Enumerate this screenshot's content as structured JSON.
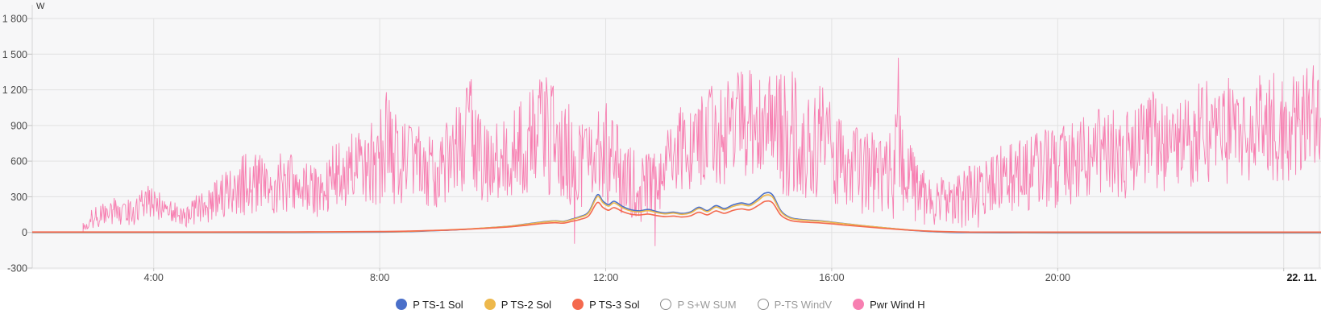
{
  "chart": {
    "unit_label": "W",
    "plot_background": "#f7f7f8",
    "grid_color": "#e2e2e2",
    "axis_color": "#d6d6d6",
    "tick_color": "#c3c3c3",
    "text_color": "#4a4a4a",
    "date_label_color": "#161616",
    "legend": {
      "active_text_color": "#212121",
      "disabled_text_color": "#9b9b9b",
      "disabled_ring_color": "#8d8d8d"
    }
  },
  "chart_data": {
    "type": "line",
    "ylabel": "W",
    "ylim": [
      -300,
      1800
    ],
    "yticks": [
      1800,
      1500,
      1200,
      900,
      600,
      300,
      0,
      -300
    ],
    "ytick_labels": [
      "1 800",
      "1 500",
      "1 200",
      "900",
      "600",
      "300",
      "0",
      "-300"
    ],
    "x_unit": "hours",
    "xlim_hours": [
      1.85,
      24.66
    ],
    "xticks": [
      {
        "h": 4,
        "label": "4:00",
        "bold": false
      },
      {
        "h": 8,
        "label": "8:00",
        "bold": false
      },
      {
        "h": 12,
        "label": "12:00",
        "bold": false
      },
      {
        "h": 16,
        "label": "16:00",
        "bold": false
      },
      {
        "h": 20,
        "label": "20:00",
        "bold": false
      },
      {
        "h": 24,
        "label": "22. 11.",
        "bold": true
      }
    ],
    "grid": true,
    "legend_position": "bottom",
    "series": [
      {
        "name": "P TS-1 Sol",
        "color": "#4a6fc9",
        "enabled": true,
        "style": "smooth",
        "points": [
          [
            1.85,
            2
          ],
          [
            5,
            2
          ],
          [
            6.5,
            3
          ],
          [
            8,
            7
          ],
          [
            8.5,
            11
          ],
          [
            9,
            19
          ],
          [
            9.5,
            30
          ],
          [
            10,
            46
          ],
          [
            10.3,
            57
          ],
          [
            10.6,
            75
          ],
          [
            10.9,
            94
          ],
          [
            11.1,
            102
          ],
          [
            11.25,
            97
          ],
          [
            11.4,
            116
          ],
          [
            11.55,
            138
          ],
          [
            11.7,
            178
          ],
          [
            11.85,
            320
          ],
          [
            11.95,
            268
          ],
          [
            12.05,
            238
          ],
          [
            12.15,
            266
          ],
          [
            12.3,
            222
          ],
          [
            12.45,
            194
          ],
          [
            12.6,
            186
          ],
          [
            12.75,
            197
          ],
          [
            12.9,
            180
          ],
          [
            13.05,
            168
          ],
          [
            13.2,
            175
          ],
          [
            13.35,
            164
          ],
          [
            13.5,
            177
          ],
          [
            13.65,
            216
          ],
          [
            13.8,
            188
          ],
          [
            13.95,
            230
          ],
          [
            14.1,
            205
          ],
          [
            14.25,
            235
          ],
          [
            14.4,
            252
          ],
          [
            14.55,
            242
          ],
          [
            14.7,
            290
          ],
          [
            14.82,
            335
          ],
          [
            14.95,
            322
          ],
          [
            15.1,
            188
          ],
          [
            15.25,
            133
          ],
          [
            15.4,
            116
          ],
          [
            15.6,
            108
          ],
          [
            15.8,
            102
          ],
          [
            16,
            91
          ],
          [
            16.2,
            80
          ],
          [
            16.5,
            64
          ],
          [
            16.8,
            49
          ],
          [
            17.1,
            35
          ],
          [
            17.4,
            22
          ],
          [
            17.7,
            12
          ],
          [
            18,
            6
          ],
          [
            18.4,
            2
          ],
          [
            19,
            1
          ],
          [
            20,
            0
          ],
          [
            24.66,
            0
          ]
        ]
      },
      {
        "name": "P TS-2 Sol",
        "color": "#edb84c",
        "enabled": true,
        "style": "smooth",
        "points": [
          [
            1.85,
            1
          ],
          [
            5,
            1
          ],
          [
            6.5,
            2
          ],
          [
            8,
            6
          ],
          [
            8.5,
            9
          ],
          [
            9,
            17
          ],
          [
            9.5,
            27
          ],
          [
            10,
            42
          ],
          [
            10.3,
            52
          ],
          [
            10.6,
            69
          ],
          [
            10.9,
            87
          ],
          [
            11.1,
            95
          ],
          [
            11.25,
            90
          ],
          [
            11.4,
            108
          ],
          [
            11.55,
            128
          ],
          [
            11.7,
            166
          ],
          [
            11.85,
            300
          ],
          [
            11.95,
            250
          ],
          [
            12.05,
            221
          ],
          [
            12.15,
            248
          ],
          [
            12.3,
            206
          ],
          [
            12.45,
            180
          ],
          [
            12.6,
            173
          ],
          [
            12.75,
            183
          ],
          [
            12.9,
            167
          ],
          [
            13.05,
            156
          ],
          [
            13.2,
            163
          ],
          [
            13.35,
            152
          ],
          [
            13.5,
            164
          ],
          [
            13.65,
            201
          ],
          [
            13.8,
            175
          ],
          [
            13.95,
            214
          ],
          [
            14.1,
            190
          ],
          [
            14.25,
            218
          ],
          [
            14.4,
            234
          ],
          [
            14.55,
            225
          ],
          [
            14.7,
            270
          ],
          [
            14.82,
            312
          ],
          [
            14.95,
            299
          ],
          [
            15.1,
            174
          ],
          [
            15.25,
            123
          ],
          [
            15.4,
            107
          ],
          [
            15.6,
            100
          ],
          [
            15.8,
            94
          ],
          [
            16,
            84
          ],
          [
            16.2,
            74
          ],
          [
            16.5,
            59
          ],
          [
            16.8,
            45
          ],
          [
            17.1,
            32
          ],
          [
            17.4,
            20
          ],
          [
            17.7,
            11
          ],
          [
            18,
            5
          ],
          [
            18.4,
            2
          ],
          [
            19,
            1
          ],
          [
            20,
            0
          ],
          [
            24.66,
            0
          ]
        ]
      },
      {
        "name": "P TS-3 Sol",
        "color": "#f4694e",
        "enabled": true,
        "style": "smooth",
        "points": [
          [
            1.85,
            1
          ],
          [
            5,
            1
          ],
          [
            6.5,
            2
          ],
          [
            8,
            5
          ],
          [
            8.5,
            8
          ],
          [
            9,
            14
          ],
          [
            9.5,
            23
          ],
          [
            10,
            35
          ],
          [
            10.3,
            44
          ],
          [
            10.6,
            58
          ],
          [
            10.9,
            73
          ],
          [
            11.1,
            79
          ],
          [
            11.25,
            75
          ],
          [
            11.4,
            90
          ],
          [
            11.55,
            107
          ],
          [
            11.7,
            138
          ],
          [
            11.85,
            248
          ],
          [
            11.95,
            208
          ],
          [
            12.05,
            184
          ],
          [
            12.15,
            206
          ],
          [
            12.3,
            172
          ],
          [
            12.45,
            150
          ],
          [
            12.6,
            144
          ],
          [
            12.75,
            152
          ],
          [
            12.9,
            139
          ],
          [
            13.05,
            130
          ],
          [
            13.2,
            135
          ],
          [
            13.35,
            127
          ],
          [
            13.5,
            137
          ],
          [
            13.65,
            167
          ],
          [
            13.8,
            145
          ],
          [
            13.95,
            178
          ],
          [
            14.1,
            158
          ],
          [
            14.25,
            182
          ],
          [
            14.4,
            195
          ],
          [
            14.55,
            187
          ],
          [
            14.7,
            224
          ],
          [
            14.82,
            258
          ],
          [
            14.95,
            248
          ],
          [
            15.1,
            143
          ],
          [
            15.25,
            101
          ],
          [
            15.4,
            88
          ],
          [
            15.6,
            82
          ],
          [
            15.8,
            77
          ],
          [
            16,
            69
          ],
          [
            16.2,
            60
          ],
          [
            16.5,
            48
          ],
          [
            16.8,
            36
          ],
          [
            17.1,
            25
          ],
          [
            17.4,
            16
          ],
          [
            17.7,
            8
          ],
          [
            18,
            4
          ],
          [
            18.4,
            1
          ],
          [
            19,
            0
          ],
          [
            24.66,
            0
          ]
        ]
      },
      {
        "name": "P S+W SUM",
        "color": null,
        "enabled": false,
        "style": "hidden",
        "points": []
      },
      {
        "name": "P-TS WindV",
        "color": null,
        "enabled": false,
        "style": "hidden",
        "points": []
      },
      {
        "name": "Pwr Wind H",
        "color": "#f77fb1",
        "enabled": true,
        "style": "noise",
        "t_start": 2.75,
        "t_end": 24.65,
        "envelope": [
          [
            2.75,
            0,
            130
          ],
          [
            3.0,
            30,
            240
          ],
          [
            3.3,
            60,
            300
          ],
          [
            3.6,
            60,
            280
          ],
          [
            3.9,
            80,
            430
          ],
          [
            4.2,
            60,
            300
          ],
          [
            4.5,
            40,
            250
          ],
          [
            4.8,
            60,
            330
          ],
          [
            5.1,
            90,
            430
          ],
          [
            5.4,
            120,
            640
          ],
          [
            5.7,
            140,
            700
          ],
          [
            6.0,
            140,
            620
          ],
          [
            6.3,
            150,
            700
          ],
          [
            6.6,
            120,
            610
          ],
          [
            6.9,
            120,
            570
          ],
          [
            7.2,
            180,
            760
          ],
          [
            7.5,
            220,
            840
          ],
          [
            7.8,
            250,
            900
          ],
          [
            8.1,
            200,
            1180
          ],
          [
            8.4,
            250,
            950
          ],
          [
            8.7,
            220,
            900
          ],
          [
            9.0,
            200,
            830
          ],
          [
            9.3,
            250,
            1000
          ],
          [
            9.6,
            250,
            1290
          ],
          [
            9.9,
            230,
            890
          ],
          [
            10.2,
            280,
            950
          ],
          [
            10.5,
            300,
            1140
          ],
          [
            10.8,
            280,
            1300
          ],
          [
            11.1,
            300,
            1310
          ],
          [
            11.4,
            200,
            1100
          ],
          [
            11.7,
            200,
            950
          ],
          [
            12.0,
            250,
            1100
          ],
          [
            12.3,
            150,
            820
          ],
          [
            12.6,
            60,
            660
          ],
          [
            12.9,
            120,
            700
          ],
          [
            13.2,
            300,
            1060
          ],
          [
            13.5,
            350,
            1150
          ],
          [
            13.8,
            350,
            1260
          ],
          [
            14.1,
            400,
            1300
          ],
          [
            14.4,
            450,
            1390
          ],
          [
            14.7,
            400,
            1450
          ],
          [
            15.0,
            350,
            1310
          ],
          [
            15.2,
            300,
            1430
          ],
          [
            15.5,
            250,
            1210
          ],
          [
            15.8,
            280,
            1300
          ],
          [
            16.1,
            200,
            1010
          ],
          [
            16.5,
            150,
            900
          ],
          [
            16.9,
            100,
            810
          ],
          [
            17.2,
            100,
            1100
          ],
          [
            17.5,
            80,
            610
          ],
          [
            17.9,
            20,
            500
          ],
          [
            18.2,
            30,
            460
          ],
          [
            18.5,
            20,
            600
          ],
          [
            18.9,
            100,
            700
          ],
          [
            19.2,
            150,
            800
          ],
          [
            19.6,
            200,
            860
          ],
          [
            20.0,
            200,
            900
          ],
          [
            20.4,
            250,
            960
          ],
          [
            20.8,
            300,
            1060
          ],
          [
            21.2,
            250,
            1010
          ],
          [
            21.6,
            300,
            1220
          ],
          [
            22.0,
            300,
            1060
          ],
          [
            22.4,
            350,
            1260
          ],
          [
            22.8,
            400,
            1300
          ],
          [
            23.2,
            400,
            1350
          ],
          [
            23.6,
            450,
            1400
          ],
          [
            24.0,
            400,
            1310
          ],
          [
            24.3,
            500,
            1460
          ],
          [
            24.65,
            600,
            1450
          ]
        ],
        "spikes": [
          [
            11.45,
            -95
          ],
          [
            12.88,
            -115
          ],
          [
            17.18,
            1470
          ],
          [
            8.12,
            1180
          ],
          [
            9.62,
            1290
          ]
        ]
      }
    ]
  }
}
